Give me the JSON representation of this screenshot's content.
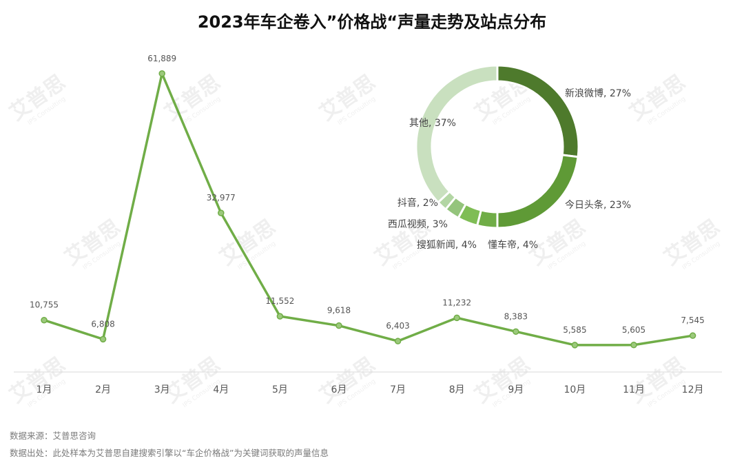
{
  "title": "2023年车企卷入”价格战“声量走势及站点分布",
  "chart_data": [
    {
      "type": "line",
      "categories": [
        "1月",
        "2月",
        "3月",
        "4月",
        "5月",
        "6月",
        "7月",
        "8月",
        "9月",
        "10月",
        "11月",
        "12月"
      ],
      "values": [
        10755,
        6808,
        61889,
        32977,
        11552,
        9618,
        6403,
        11232,
        8383,
        5585,
        5605,
        7545
      ],
      "value_labels": [
        "10,755",
        "6,808",
        "61,889",
        "32,977",
        "11,552",
        "9,618",
        "6,403",
        "11,232",
        "8,383",
        "5,585",
        "5,605",
        "7,545"
      ],
      "color": "#70ad47",
      "grid": false,
      "ylim": [
        0,
        70000
      ]
    },
    {
      "type": "pie",
      "style": "donut",
      "slices": [
        {
          "label": "新浪微博",
          "value": 27,
          "text": "新浪微博, 27%",
          "color": "#4e7a2c"
        },
        {
          "label": "今日头条",
          "value": 23,
          "text": "今日头条, 23%",
          "color": "#5f9a36"
        },
        {
          "label": "懂车帝",
          "value": 4,
          "text": "懂车帝, 4%",
          "color": "#70ad47"
        },
        {
          "label": "搜狐新闻",
          "value": 4,
          "text": "搜狐新闻, 4%",
          "color": "#7fbd55"
        },
        {
          "label": "西瓜视频",
          "value": 3,
          "text": "西瓜视频, 3%",
          "color": "#94c47c"
        },
        {
          "label": "抖音",
          "value": 2,
          "text": "抖音, 2%",
          "color": "#b3d6a4"
        },
        {
          "label": "其他",
          "value": 37,
          "text": "其他, 37%",
          "color": "#c9e0bf"
        }
      ]
    }
  ],
  "footer": {
    "source": "数据来源：艾普思咨询",
    "note": "数据出处：此处样本为艾普思自建搜索引擎以“车企价格战”为关键词获取的声量信息"
  },
  "watermark": {
    "text": "艾普思",
    "subtext": "IPS Consulting"
  }
}
